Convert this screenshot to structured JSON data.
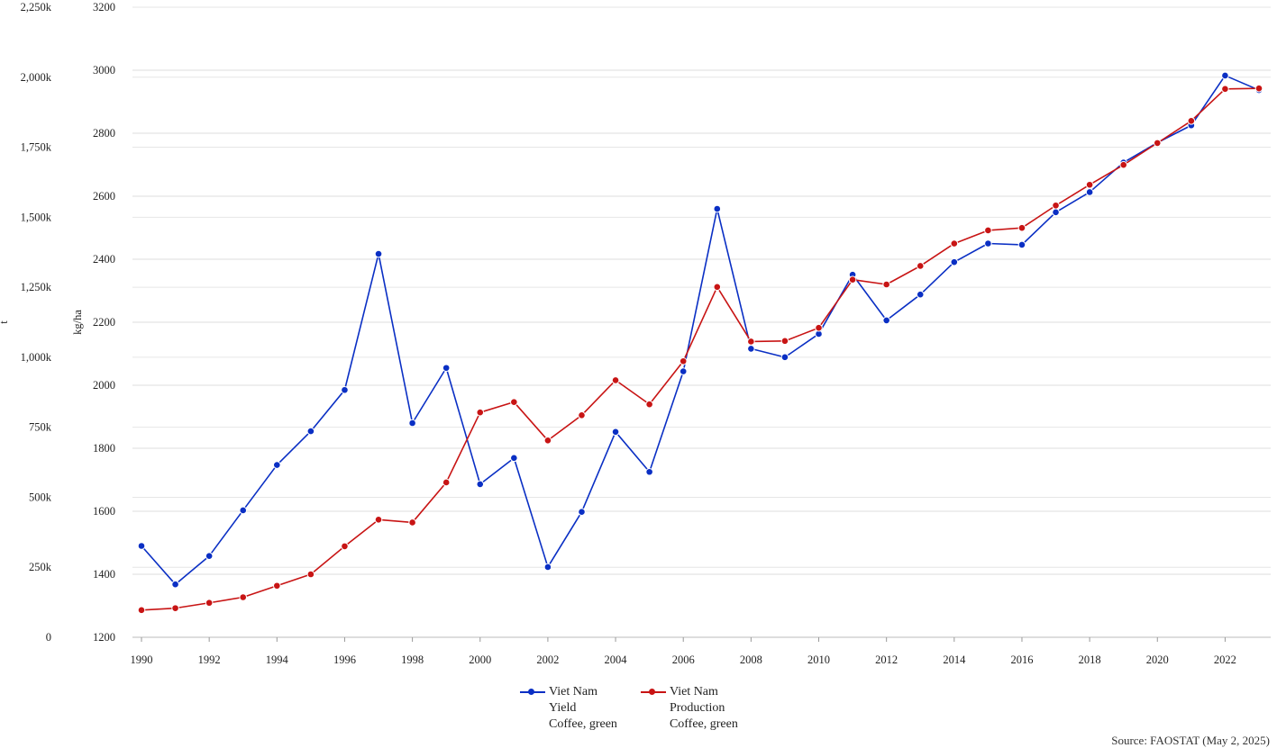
{
  "chart_data": {
    "type": "line",
    "x": [
      1990,
      1991,
      1992,
      1993,
      1994,
      1995,
      1996,
      1997,
      1998,
      1999,
      2000,
      2001,
      2002,
      2003,
      2004,
      2005,
      2006,
      2007,
      2008,
      2009,
      2010,
      2011,
      2012,
      2013,
      2014,
      2015,
      2016,
      2017,
      2018,
      2019,
      2020,
      2021,
      2022,
      2023
    ],
    "x_ticks": [
      "1990",
      "1992",
      "1994",
      "1996",
      "1998",
      "2000",
      "2002",
      "2004",
      "2006",
      "2008",
      "2010",
      "2012",
      "2014",
      "2016",
      "2018",
      "2020",
      "2022"
    ],
    "xlim": [
      1990,
      2023
    ],
    "y_left": {
      "label": "t",
      "ylim": [
        0,
        2250000
      ],
      "tick_labels": [
        "0",
        "250k",
        "500k",
        "750k",
        "1,000k",
        "1,250k",
        "1,500k",
        "1,750k",
        "2,000k",
        "2,250k"
      ],
      "tick_values": [
        0,
        250000,
        500000,
        750000,
        1000000,
        1250000,
        1500000,
        1750000,
        2000000,
        2250000
      ]
    },
    "y_right": {
      "label": "kg/ha",
      "ylim": [
        1200,
        3200
      ],
      "tick_labels": [
        "1200",
        "1400",
        "1600",
        "1800",
        "2000",
        "2200",
        "2400",
        "2600",
        "2800",
        "3000",
        "3200"
      ],
      "tick_values": [
        1200,
        1400,
        1600,
        1800,
        2000,
        2200,
        2400,
        2600,
        2800,
        3000,
        3200
      ]
    },
    "series": [
      {
        "axis": "right",
        "color": "#0a2fc4",
        "legend": [
          "Viet Nam",
          "Yield",
          "Coffee, green"
        ],
        "values": [
          1490,
          1368,
          1458,
          1603,
          1747,
          1854,
          1985,
          2417,
          1880,
          2055,
          1686,
          1769,
          1423,
          1598,
          1852,
          1725,
          2044,
          2560,
          2116,
          2089,
          2163,
          2351,
          2206,
          2288,
          2391,
          2450,
          2446,
          2549,
          2613,
          2707,
          2770,
          2825,
          2983,
          2937
        ]
      },
      {
        "axis": "left",
        "color": "#c81414",
        "legend": [
          "Viet Nam",
          "Production",
          "Coffee, green"
        ],
        "values": [
          97000,
          104000,
          123000,
          143000,
          184000,
          225000,
          325000,
          420000,
          410000,
          553000,
          803000,
          840000,
          703000,
          793000,
          918000,
          832000,
          986000,
          1251000,
          1056000,
          1058000,
          1105000,
          1277000,
          1260000,
          1326000,
          1406000,
          1453000,
          1462000,
          1542000,
          1616000,
          1687000,
          1765000,
          1844000,
          1958000,
          1960000
        ]
      }
    ]
  },
  "legend": {
    "items": [
      {
        "line1": "Viet Nam",
        "line2": "Yield",
        "line3": "Coffee, green",
        "color": "#0a2fc4"
      },
      {
        "line1": "Viet Nam",
        "line2": "Production",
        "line3": "Coffee, green",
        "color": "#c81414"
      }
    ]
  },
  "source": "Source: FAOSTAT (May 2, 2025)"
}
